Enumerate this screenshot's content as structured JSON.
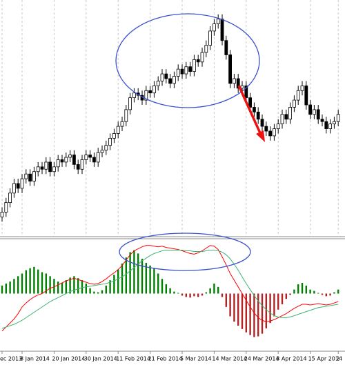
{
  "chart_data": [
    {
      "type": "candlestick",
      "ylim": [
        2,
        101
      ],
      "grid": true,
      "up_color": "#ffffff",
      "down_color": "#000000",
      "open": [
        10,
        12,
        16,
        20,
        24,
        22,
        26,
        28,
        25,
        29,
        31,
        30,
        33,
        29,
        31,
        34,
        33,
        35,
        36,
        32,
        30,
        34,
        36,
        35,
        33,
        37,
        38,
        40,
        43,
        45,
        48,
        50,
        55,
        60,
        62,
        61,
        59,
        63,
        62,
        65,
        67,
        70,
        68,
        66,
        69,
        72,
        70,
        73,
        71,
        76,
        75,
        79,
        82,
        88,
        91,
        93,
        84,
        78,
        66,
        68,
        64,
        65,
        60,
        56,
        54,
        51,
        48,
        46,
        44,
        47,
        49,
        53,
        51,
        56,
        59,
        63,
        65,
        57,
        53,
        55,
        51,
        50,
        47,
        49,
        50
      ],
      "high": [
        14,
        18,
        22,
        26,
        26,
        28,
        30,
        30,
        31,
        33,
        33,
        35,
        35,
        33,
        36,
        36,
        37,
        38,
        38,
        34,
        36,
        38,
        38,
        37,
        39,
        40,
        42,
        45,
        47,
        50,
        52,
        57,
        62,
        64,
        64,
        63,
        65,
        65,
        67,
        69,
        72,
        72,
        70,
        71,
        74,
        74,
        75,
        75,
        78,
        78,
        81,
        84,
        90,
        93,
        95,
        95,
        86,
        80,
        70,
        70,
        67,
        67,
        62,
        58,
        56,
        53,
        50,
        48,
        49,
        51,
        55,
        55,
        58,
        61,
        65,
        67,
        67,
        59,
        57,
        57,
        53,
        52,
        51,
        52,
        55
      ],
      "low": [
        8,
        10,
        14,
        18,
        20,
        20,
        24,
        23,
        23,
        27,
        28,
        28,
        27,
        27,
        29,
        31,
        31,
        33,
        30,
        28,
        28,
        32,
        33,
        31,
        31,
        35,
        36,
        38,
        41,
        43,
        46,
        48,
        53,
        58,
        59,
        57,
        57,
        60,
        60,
        63,
        65,
        66,
        64,
        64,
        67,
        68,
        68,
        69,
        69,
        73,
        73,
        77,
        80,
        86,
        89,
        82,
        76,
        64,
        64,
        62,
        62,
        58,
        54,
        52,
        49,
        46,
        44,
        42,
        42,
        45,
        47,
        49,
        49,
        54,
        57,
        61,
        55,
        51,
        51,
        49,
        48,
        45,
        45,
        47,
        48
      ],
      "close": [
        12,
        16,
        20,
        24,
        22,
        26,
        28,
        25,
        29,
        31,
        30,
        33,
        29,
        31,
        34,
        33,
        35,
        36,
        32,
        30,
        34,
        36,
        35,
        33,
        37,
        38,
        40,
        43,
        45,
        48,
        50,
        55,
        60,
        62,
        61,
        59,
        63,
        62,
        65,
        67,
        70,
        68,
        66,
        69,
        72,
        70,
        73,
        71,
        76,
        75,
        79,
        82,
        88,
        91,
        93,
        84,
        78,
        66,
        68,
        64,
        65,
        60,
        56,
        54,
        51,
        48,
        46,
        44,
        47,
        49,
        53,
        51,
        56,
        59,
        63,
        65,
        57,
        53,
        55,
        51,
        50,
        47,
        49,
        50,
        53
      ]
    },
    {
      "type": "macd",
      "ylim": [
        -8,
        8
      ],
      "categories": [
        "ec 2013",
        null,
        null,
        null,
        null,
        "8 Jan 2014",
        null,
        null,
        null,
        null,
        null,
        null,
        null,
        "20 Jan 2014",
        null,
        null,
        null,
        null,
        null,
        null,
        null,
        "30 Jan 2014",
        null,
        null,
        null,
        null,
        null,
        null,
        null,
        "11 Feb 2014",
        null,
        null,
        null,
        null,
        null,
        null,
        null,
        "21 Feb 2014",
        null,
        null,
        null,
        null,
        null,
        null,
        null,
        "5 Mar 2014",
        null,
        null,
        null,
        null,
        null,
        null,
        null,
        "14 Mar 2014",
        null,
        null,
        null,
        null,
        null,
        null,
        null,
        "24 Mar 2014",
        null,
        null,
        null,
        null,
        null,
        null,
        null,
        "3 Apr 2014",
        null,
        null,
        null,
        null,
        null,
        null,
        null,
        "15 Apr 2014",
        null,
        null,
        null,
        null,
        null,
        null,
        "2"
      ],
      "series": [
        {
          "kind": "histogram",
          "color": "#008000",
          "negative_color": "#b22222",
          "values": [
            1.2,
            1.5,
            1.8,
            2.2,
            2.6,
            3.0,
            3.5,
            3.8,
            4.0,
            3.6,
            3.2,
            3.0,
            2.6,
            2.2,
            1.8,
            1.6,
            2.0,
            2.4,
            2.6,
            2.3,
            2.0,
            1.5,
            0.8,
            0.3,
            0.2,
            0.5,
            1.2,
            2.0,
            2.8,
            3.6,
            4.5,
            5.4,
            6.2,
            6.5,
            6.0,
            5.2,
            4.6,
            4.2,
            3.8,
            3.0,
            2.2,
            1.4,
            0.8,
            0.3,
            0.1,
            -0.3,
            -0.5,
            -0.6,
            -0.4,
            -0.5,
            -0.3,
            0.2,
            0.8,
            1.5,
            1.0,
            -0.5,
            -2.0,
            -3.4,
            -4.2,
            -4.8,
            -5.3,
            -5.8,
            -6.2,
            -6.5,
            -6.4,
            -6.0,
            -5.2,
            -4.4,
            -3.4,
            -2.4,
            -1.6,
            -0.8,
            -0.2,
            0.6,
            1.4,
            1.6,
            1.2,
            0.6,
            0.4,
            0.1,
            -0.2,
            -0.4,
            -0.3,
            0.2,
            0.6
          ]
        },
        {
          "kind": "line",
          "color": "#ff0000",
          "values": [
            -5.6,
            -5.0,
            -4.4,
            -3.8,
            -3.0,
            -2.0,
            -1.4,
            -0.9,
            -0.5,
            -0.2,
            0.0,
            0.4,
            0.8,
            1.0,
            1.3,
            1.6,
            1.9,
            2.1,
            2.3,
            2.1,
            1.9,
            1.7,
            1.5,
            1.4,
            1.5,
            1.8,
            2.2,
            2.7,
            3.1,
            3.6,
            4.2,
            5.0,
            5.8,
            6.4,
            6.7,
            7.0,
            7.2,
            7.2,
            7.1,
            7.0,
            7.1,
            6.9,
            6.8,
            6.7,
            6.6,
            6.4,
            6.2,
            6.0,
            5.9,
            6.1,
            6.4,
            6.8,
            7.2,
            7.1,
            6.6,
            5.5,
            4.3,
            3.0,
            2.0,
            1.0,
            0.0,
            -1.0,
            -2.0,
            -2.9,
            -3.6,
            -4.0,
            -4.2,
            -4.1,
            -3.9,
            -3.6,
            -3.3,
            -3.0,
            -2.6,
            -2.2,
            -1.9,
            -1.6,
            -1.6,
            -1.7,
            -1.6,
            -1.5,
            -1.6,
            -1.7,
            -1.6,
            -1.4,
            -1.2
          ]
        },
        {
          "kind": "line",
          "color": "#3cb371",
          "values": [
            -5.2,
            -5.0,
            -4.8,
            -4.6,
            -4.3,
            -4.0,
            -3.6,
            -3.2,
            -2.8,
            -2.4,
            -2.0,
            -1.6,
            -1.2,
            -0.9,
            -0.6,
            -0.3,
            0.0,
            0.3,
            0.5,
            0.7,
            0.9,
            1.0,
            1.1,
            1.2,
            1.3,
            1.4,
            1.5,
            1.7,
            1.9,
            2.2,
            2.5,
            2.9,
            3.4,
            3.9,
            4.4,
            4.9,
            5.3,
            5.7,
            6.0,
            6.2,
            6.4,
            6.5,
            6.5,
            6.5,
            6.5,
            6.5,
            6.4,
            6.4,
            6.3,
            6.3,
            6.3,
            6.4,
            6.5,
            6.5,
            6.4,
            6.2,
            5.8,
            5.2,
            4.4,
            3.5,
            2.5,
            1.5,
            0.6,
            -0.3,
            -1.1,
            -1.8,
            -2.4,
            -2.9,
            -3.3,
            -3.5,
            -3.6,
            -3.6,
            -3.5,
            -3.3,
            -3.1,
            -2.9,
            -2.7,
            -2.5,
            -2.3,
            -2.1,
            -2.0,
            -1.9,
            -1.8,
            -1.7,
            -1.6
          ]
        }
      ]
    }
  ]
}
